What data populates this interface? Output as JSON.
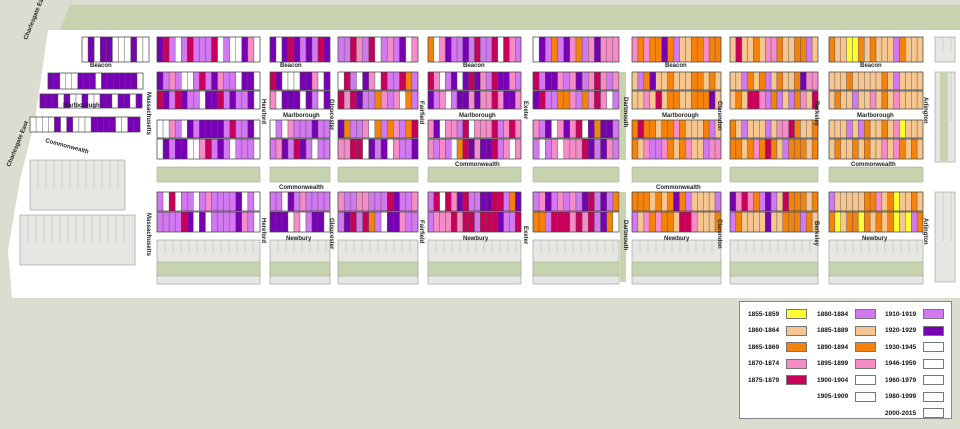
{
  "streets": {
    "beacon": "Beacon",
    "marlborough": "Marlborough",
    "commonwealth": "Commonwealth",
    "newbury": "Newbury",
    "massachusetts": "Massachusetts",
    "hereford": "Hereford",
    "gloucester": "Gloucester",
    "fairfield": "Fairfield",
    "exeter": "Exeter",
    "dartmouth": "Dartmouth",
    "clarendon": "Clarendon",
    "berkeley": "Berkeley",
    "arlington": "Arlington",
    "charlesgate_east": "Charlesgate East"
  },
  "legend": {
    "items": [
      {
        "label": "1855-1859",
        "color": "#ffff33"
      },
      {
        "label": "1860-1864",
        "color": "#f5c690"
      },
      {
        "label": "1865-1869",
        "color": "#f5820a"
      },
      {
        "label": "1870-1874",
        "color": "#f58cc8"
      },
      {
        "label": "1875-1879",
        "color": "#c8005a"
      },
      {
        "label": "1880-1884",
        "color": "#d278f0"
      },
      {
        "label": "1885-1889",
        "color": "#f5c690"
      },
      {
        "label": "1890-1894",
        "color": "#f5820a"
      },
      {
        "label": "1895-1899",
        "color": "#f58cc8"
      },
      {
        "label": "1900-1904",
        "color": "#ffffff"
      },
      {
        "label": "1905-1909",
        "color": "#ffffff"
      },
      {
        "label": "1910-1919",
        "color": "#d278f0"
      },
      {
        "label": "1920-1929",
        "color": "#7800b4"
      },
      {
        "label": "1930-1945",
        "color": "#ffffff"
      },
      {
        "label": "1946-1959",
        "color": "#ffffff"
      },
      {
        "label": "1960-1979",
        "color": "#ffffff"
      },
      {
        "label": "1980-1999",
        "color": "#ffffff"
      },
      {
        "label": "2000-2015",
        "color": "#ffffff"
      }
    ]
  },
  "colors": {
    "background": "#dcdcd0",
    "river": "#c6d3ae",
    "mall": "#c6d3ae",
    "street": "#ffffff",
    "block_gray": "#e6e6e2",
    "lot_outline": "#555555"
  }
}
